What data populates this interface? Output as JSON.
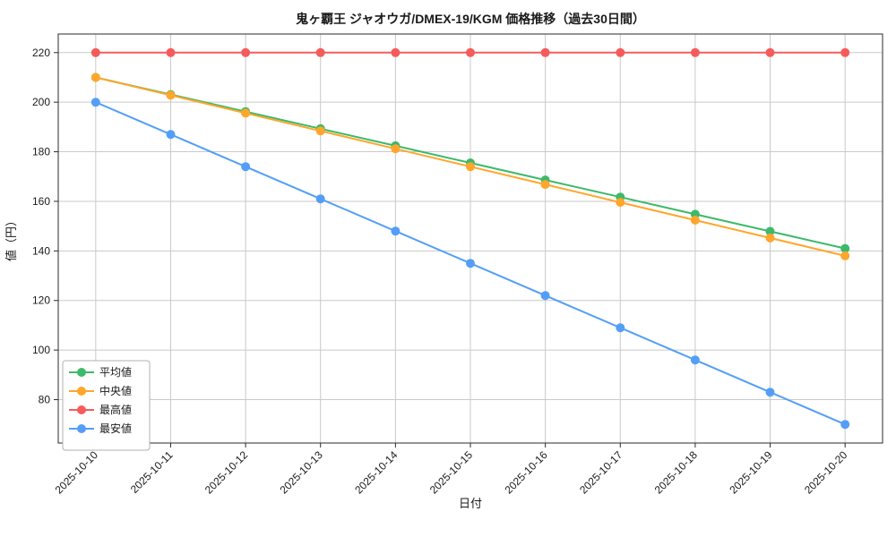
{
  "chart_data": {
    "type": "line",
    "title": "鬼ヶ覇王 ジャオウガ/DMEX-19/KGM 価格推移（過去30日間）",
    "xlabel": "日付",
    "ylabel": "値（円）",
    "x_categories": [
      "2025-10-10",
      "2025-10-11",
      "2025-10-12",
      "2025-10-13",
      "2025-10-14",
      "2025-10-15",
      "2025-10-16",
      "2025-10-17",
      "2025-10-18",
      "2025-10-19",
      "2025-10-20"
    ],
    "y_ticks": [
      80,
      100,
      120,
      140,
      160,
      180,
      200,
      220
    ],
    "ylim": [
      62.5,
      227.5
    ],
    "grid": true,
    "legend_position": "lower-left",
    "series": [
      {
        "name": "平均値",
        "color": "#3cb96a",
        "values": [
          210,
          203.1,
          196.2,
          189.3,
          182.4,
          175.5,
          168.6,
          161.7,
          154.8,
          147.9,
          141
        ]
      },
      {
        "name": "中央値",
        "color": "#ffa62b",
        "values": [
          210,
          202.8,
          195.6,
          188.4,
          181.2,
          174,
          166.8,
          159.6,
          152.4,
          145.2,
          138
        ]
      },
      {
        "name": "最高値",
        "color": "#f65b5b",
        "values": [
          220,
          220,
          220,
          220,
          220,
          220,
          220,
          220,
          220,
          220,
          220
        ]
      },
      {
        "name": "最安値",
        "color": "#549ef7",
        "values": [
          200,
          187,
          174,
          161,
          148,
          135,
          122,
          109,
          96,
          83,
          70
        ]
      }
    ],
    "colors": {
      "grid": "#c9c9c9",
      "spine": "#2b2b2b",
      "background": "#ffffff"
    }
  }
}
